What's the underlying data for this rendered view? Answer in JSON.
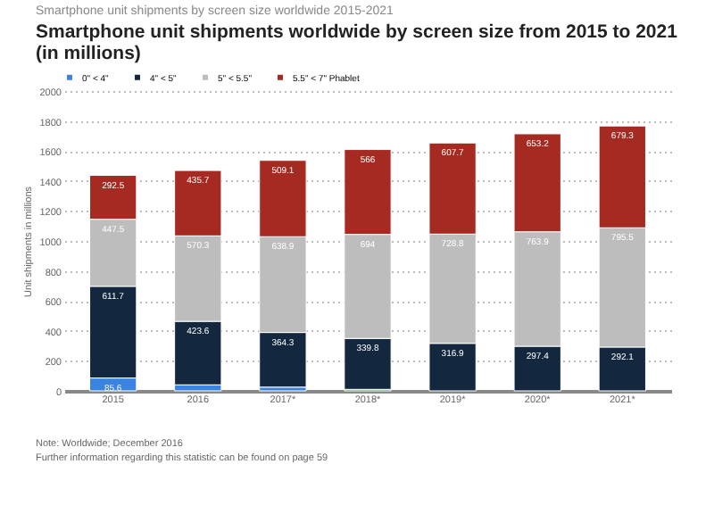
{
  "chart_data": {
    "type": "bar",
    "stacked": true,
    "subtitle": "Smartphone unit shipments by screen size worldwide 2015-2021",
    "title": "Smartphone unit shipments worldwide by screen size from 2015 to 2021 (in millions)",
    "ylabel": "Unit shipments in millions",
    "categories": [
      "2015",
      "2016",
      "2017*",
      "2018*",
      "2019*",
      "2020*",
      "2021*"
    ],
    "series": [
      {
        "name": "0\" < 4\"",
        "color": "#3a83e0",
        "values": [
          85.6,
          40,
          25,
          10,
          null,
          null,
          null
        ],
        "value_labels": [
          "85.6",
          null,
          null,
          null,
          null,
          null,
          null
        ]
      },
      {
        "name": "4\" < 5\"",
        "color": "#13283f",
        "values": [
          611.7,
          423.6,
          364.3,
          339.8,
          316.9,
          297.4,
          292.1
        ],
        "value_labels": [
          "611.7",
          "423.6",
          "364.3",
          "339.8",
          "316.9",
          "297.4",
          "292.1"
        ]
      },
      {
        "name": "5\" < 5.5\"",
        "color": "#bdbdbd",
        "values": [
          447.5,
          570.3,
          638.9,
          694,
          728.8,
          763.9,
          795.5
        ],
        "value_labels": [
          "447.5",
          "570.3",
          "638.9",
          "694",
          "728.8",
          "763.9",
          "795.5"
        ]
      },
      {
        "name": "5.5\" < 7\" Phablet",
        "color": "#a52a22",
        "values": [
          292.5,
          435.7,
          509.1,
          566,
          607.7,
          653.2,
          679.3
        ],
        "value_labels": [
          "292.5",
          "435.7",
          "509.1",
          "566",
          "607.7",
          "653.2",
          "679.3"
        ]
      }
    ],
    "ylim": [
      0,
      2000
    ],
    "yticks": [
      0,
      200,
      400,
      600,
      800,
      1000,
      1200,
      1400,
      1600,
      1800,
      2000
    ],
    "grid": "y",
    "legend": "top",
    "annotations": [
      "Note: Worldwide; December 2016",
      "Further information regarding this statistic can be found on page 59"
    ]
  }
}
